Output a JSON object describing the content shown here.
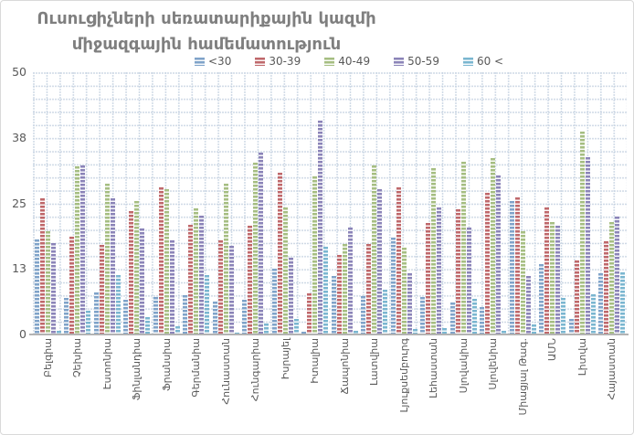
{
  "chart_data": {
    "type": "bar",
    "title_line1": "Ուսուցիչների սեռատարիքային կազմի",
    "title_line2": "միջազգային համեմատություն",
    "title_color": "#7f7f7f",
    "legend_position": "top",
    "grid": "dotted-both-directions",
    "ylim": [
      0,
      50
    ],
    "y_ticks": [
      "50",
      "38",
      "25",
      "13",
      "0"
    ],
    "categories": [
      "Բելգիա",
      "Չեխիա",
      "Էստոնիա",
      "Ֆինլանդիա",
      "Ֆրանսիա",
      "Գերմանիա",
      "Հունաստան",
      "Հունգարիա",
      "Իսրայել",
      "Իտալիա",
      "Ճապոնիա",
      "Լատվիա",
      "Լյուքսեմբուրգ",
      "Լեհաստան",
      "Սլովակիա",
      "Սլովենիա",
      "Միացյալ Թագ.",
      "ԱՄՆ",
      "Լիտվա",
      "Հայաստան"
    ],
    "series": [
      {
        "name": "<30",
        "color": "#7FA3C9",
        "values": [
          18.2,
          7.0,
          8.1,
          6.7,
          7.1,
          7.5,
          6.2,
          6.7,
          12.6,
          0.6,
          11.2,
          7.4,
          18.4,
          7.1,
          6.1,
          5.2,
          25.4,
          13.5,
          3.0,
          11.6
        ]
      },
      {
        "name": "30-39",
        "color": "#BF686B",
        "values": [
          26.0,
          18.6,
          17.0,
          23.5,
          28.0,
          21.0,
          17.9,
          20.8,
          30.8,
          7.8,
          15.2,
          17.2,
          28.0,
          21.2,
          23.8,
          27.0,
          26.2,
          24.2,
          14.1,
          17.7
        ]
      },
      {
        "name": "40-49",
        "color": "#A6BE82",
        "values": [
          19.7,
          32.0,
          28.7,
          25.5,
          27.7,
          24.1,
          28.7,
          32.7,
          24.3,
          30.2,
          17.2,
          32.2,
          16.6,
          31.8,
          32.9,
          33.7,
          19.7,
          21.5,
          38.7,
          21.5
        ]
      },
      {
        "name": "50-59",
        "color": "#8B84B8",
        "values": [
          17.4,
          32.2,
          26.0,
          20.3,
          17.9,
          22.7,
          16.9,
          34.7,
          14.6,
          40.8,
          20.4,
          27.7,
          11.7,
          24.2,
          20.4,
          30.4,
          11.1,
          20.8,
          33.8,
          22.5
        ]
      },
      {
        "name": "60 <",
        "color": "#7AB6D0",
        "values": [
          0.7,
          4.6,
          11.4,
          3.3,
          1.5,
          11.3,
          0.4,
          2.1,
          3.0,
          16.7,
          0.7,
          8.5,
          1.0,
          1.2,
          6.8,
          0.7,
          1.9,
          7.0,
          7.7,
          11.9
        ]
      }
    ]
  }
}
